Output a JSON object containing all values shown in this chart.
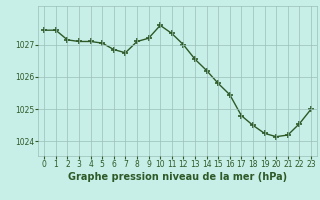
{
  "x": [
    0,
    1,
    2,
    3,
    4,
    5,
    6,
    7,
    8,
    9,
    10,
    11,
    12,
    13,
    14,
    15,
    16,
    17,
    18,
    19,
    20,
    21,
    22,
    23
  ],
  "y": [
    1027.45,
    1027.45,
    1027.15,
    1027.1,
    1027.1,
    1027.05,
    1026.85,
    1026.75,
    1027.1,
    1027.2,
    1027.6,
    1027.35,
    1027.0,
    1026.55,
    1026.2,
    1025.8,
    1025.45,
    1024.8,
    1024.5,
    1024.25,
    1024.15,
    1024.2,
    1024.55,
    1025.0
  ],
  "line_color": "#2d5a27",
  "marker": "+",
  "marker_size": 5,
  "marker_lw": 1.2,
  "line_width": 1.0,
  "bg_color": "#c8eee8",
  "grid_color": "#9bbfb8",
  "xlabel": "Graphe pression niveau de la mer (hPa)",
  "ylim_min": 1023.55,
  "ylim_max": 1028.2,
  "yticks": [
    1024,
    1025,
    1026,
    1027
  ],
  "xticks": [
    0,
    1,
    2,
    3,
    4,
    5,
    6,
    7,
    8,
    9,
    10,
    11,
    12,
    13,
    14,
    15,
    16,
    17,
    18,
    19,
    20,
    21,
    22,
    23
  ],
  "tick_label_fontsize": 5.5,
  "xlabel_fontsize": 7.0
}
